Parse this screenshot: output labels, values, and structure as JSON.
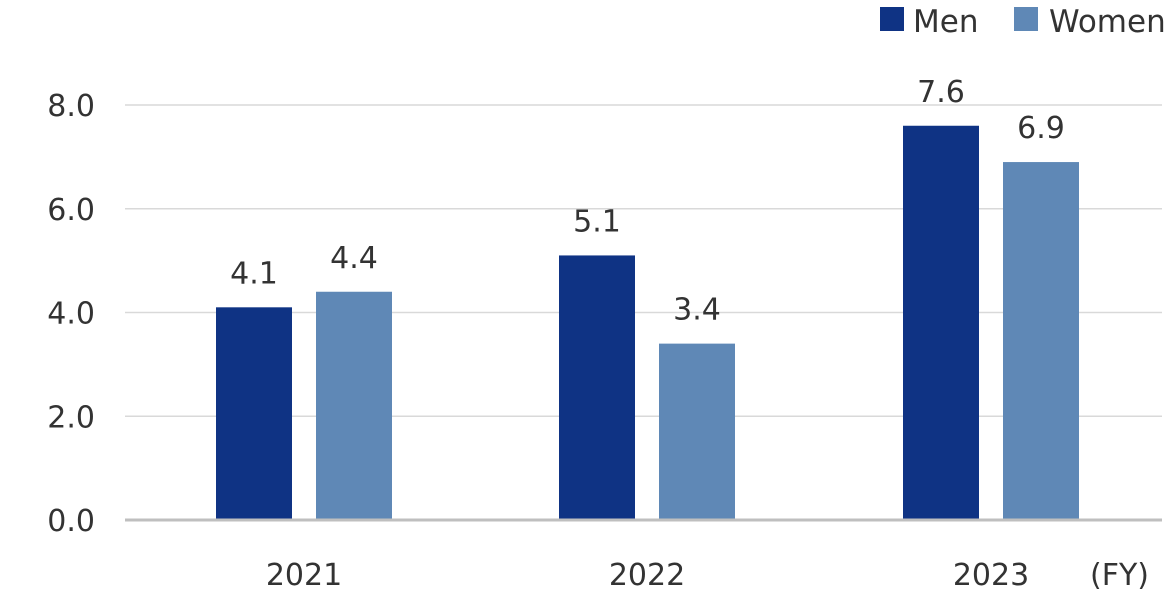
{
  "chart_data": {
    "type": "bar",
    "categories": [
      "2021",
      "2022",
      "2023"
    ],
    "series": [
      {
        "name": "Men",
        "values": [
          4.1,
          5.1,
          7.6
        ],
        "color": "#0f3384"
      },
      {
        "name": "Women",
        "values": [
          4.4,
          3.4,
          6.9
        ],
        "color": "#5f88b6"
      }
    ],
    "data_labels": [
      [
        "4.1",
        "5.1",
        "7.6"
      ],
      [
        "4.4",
        "3.4",
        "6.9"
      ]
    ],
    "x_unit_label": "(FY)",
    "ylim": [
      0,
      8
    ],
    "yticks": [
      "0.0",
      "2.0",
      "4.0",
      "6.0",
      "8.0"
    ],
    "grid": true,
    "legend_position": "top-right",
    "gridline_color": "#d9d9d9",
    "axis_color": "#bfbfbf",
    "text_color": "#333333"
  }
}
